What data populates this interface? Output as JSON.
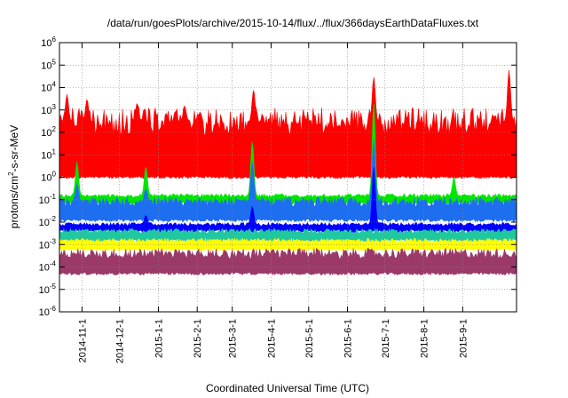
{
  "chart_data": {
    "type": "area",
    "title": "/data/run/goesPlots/archive/2015-10-14/flux/../flux/366daysEarthDataFluxes.txt",
    "xlabel": "Coordinated Universal Time (UTC)",
    "ylabel": {
      "base": "protons/cm",
      "sup": "2",
      "rest": "-s-sr-MeV"
    },
    "yscale": "log",
    "ylim_exponent": [
      -6,
      6
    ],
    "y_ticks": [
      {
        "base": "10",
        "exp": "-6"
      },
      {
        "base": "10",
        "exp": "-5"
      },
      {
        "base": "10",
        "exp": "-4"
      },
      {
        "base": "10",
        "exp": "-3"
      },
      {
        "base": "10",
        "exp": "-2"
      },
      {
        "base": "10",
        "exp": "-1"
      },
      {
        "base": "10",
        "exp": "0"
      },
      {
        "base": "10",
        "exp": "1"
      },
      {
        "base": "10",
        "exp": "2"
      },
      {
        "base": "10",
        "exp": "3"
      },
      {
        "base": "10",
        "exp": "4"
      },
      {
        "base": "10",
        "exp": "5"
      },
      {
        "base": "10",
        "exp": "6"
      }
    ],
    "xlim": [
      "2014-10-14",
      "2015-10-14"
    ],
    "x_ticks": [
      {
        "date": "2014-11-01",
        "label": "2014-11-1"
      },
      {
        "date": "2014-12-01",
        "label": "2014-12-1"
      },
      {
        "date": "2015-01-01",
        "label": "2015-1-1"
      },
      {
        "date": "2015-02-01",
        "label": "2015-2-1"
      },
      {
        "date": "2015-03-01",
        "label": "2015-3-1"
      },
      {
        "date": "2015-04-01",
        "label": "2015-4-1"
      },
      {
        "date": "2015-05-01",
        "label": "2015-5-1"
      },
      {
        "date": "2015-06-01",
        "label": "2015-6-1"
      },
      {
        "date": "2015-07-01",
        "label": "2015-7-1"
      },
      {
        "date": "2015-08-01",
        "label": "2015-8-1"
      },
      {
        "date": "2015-09-01",
        "label": "2015-9-1"
      }
    ],
    "grid": true,
    "series": [
      {
        "color": "#ff0000",
        "baseline_low": 1,
        "baseline_high": 300,
        "events": [
          {
            "date": "2014-10-20",
            "peak": 5000
          },
          {
            "date": "2014-11-05",
            "peak": 3000
          },
          {
            "date": "2014-12-15",
            "peak": 2000
          },
          {
            "date": "2015-01-22",
            "peak": 1500
          },
          {
            "date": "2015-03-18",
            "peak": 8000
          },
          {
            "date": "2015-06-22",
            "peak": 30000
          },
          {
            "date": "2015-10-08",
            "peak": 60000
          }
        ]
      },
      {
        "color": "#00e600",
        "baseline_low": 0.07,
        "baseline_high": 0.15,
        "events": [
          {
            "date": "2014-10-28",
            "peak": 5
          },
          {
            "date": "2014-12-22",
            "peak": 3
          },
          {
            "date": "2015-03-17",
            "peak": 40
          },
          {
            "date": "2015-06-22",
            "peak": 2000
          },
          {
            "date": "2015-08-25",
            "peak": 1
          }
        ]
      },
      {
        "color": "#1e6ef0",
        "baseline_low": 0.012,
        "baseline_high": 0.08,
        "events": [
          {
            "date": "2014-10-28",
            "peak": 0.5
          },
          {
            "date": "2014-12-22",
            "peak": 0.3
          },
          {
            "date": "2015-03-17",
            "peak": 5
          },
          {
            "date": "2015-06-22",
            "peak": 50
          }
        ]
      },
      {
        "color": "#0000ff",
        "baseline_low": 0.004,
        "baseline_high": 0.008,
        "events": [
          {
            "date": "2014-12-22",
            "peak": 0.02
          },
          {
            "date": "2015-03-17",
            "peak": 0.05
          },
          {
            "date": "2015-06-22",
            "peak": 3
          }
        ]
      },
      {
        "color": "#20c8a0",
        "baseline_low": 0.0015,
        "baseline_high": 0.004,
        "events": []
      },
      {
        "color": "#ffff00",
        "baseline_low": 0.0006,
        "baseline_high": 0.0015,
        "events": []
      },
      {
        "color": "#9b3a68",
        "baseline_low": 5e-05,
        "baseline_high": 0.0004,
        "events": []
      }
    ]
  }
}
